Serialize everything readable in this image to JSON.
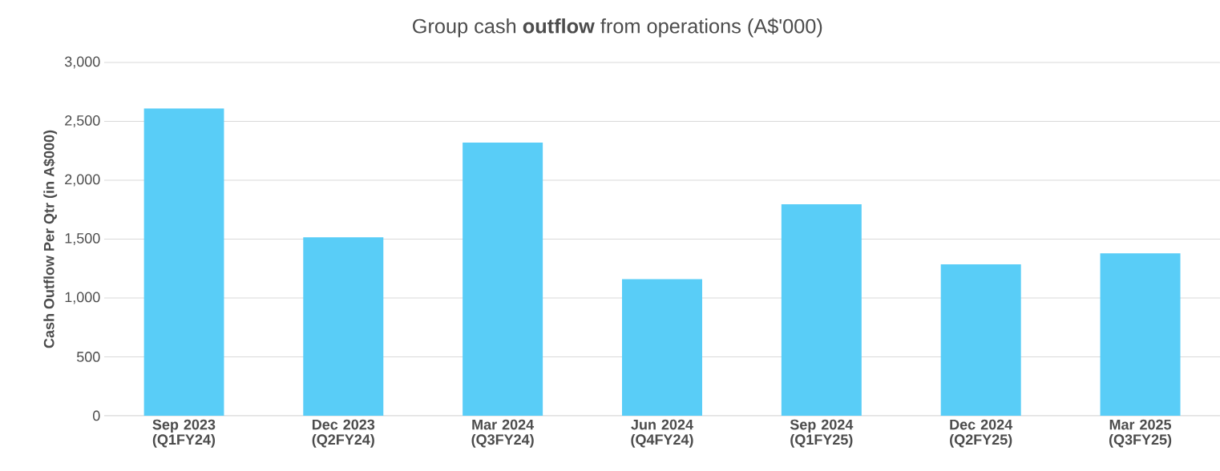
{
  "chart_data": {
    "type": "bar",
    "title": "Group cash **outflow** from operations (A$'000)",
    "ylabel": "Cash Outflow Per Qtr (in A$000)",
    "categories": [
      "Sep 2023 (Q1FY24)",
      "Dec 2023 (Q2FY24)",
      "Mar 2024 (Q3FY24)",
      "Jun 2024 (Q4FY24)",
      "Sep 2024 (Q1FY25)",
      "Dec 2024 (Q2FY25)",
      "Mar 2025 (Q3FY25)"
    ],
    "values": [
      2610,
      1515,
      2320,
      1160,
      1795,
      1285,
      1380
    ],
    "color": "#59cdf7",
    "ylim": [
      0,
      3000
    ],
    "yticks": [
      {
        "value": 0,
        "label": "0"
      },
      {
        "value": 500,
        "label": "500"
      },
      {
        "value": 1000,
        "label": "1,000"
      },
      {
        "value": 1500,
        "label": "1,500"
      },
      {
        "value": 2000,
        "label": "2,000"
      },
      {
        "value": 2500,
        "label": "2,500"
      },
      {
        "value": 3000,
        "label": "3,000"
      }
    ],
    "grid": "y"
  }
}
